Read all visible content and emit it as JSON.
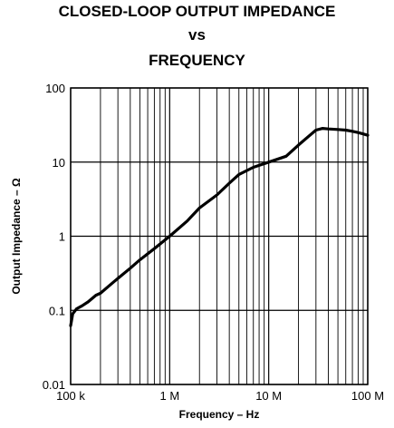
{
  "chart_data": {
    "type": "line",
    "title": [
      "CLOSED-LOOP OUTPUT IMPEDANCE",
      "vs",
      "FREQUENCY"
    ],
    "xlabel": "Frequency – Hz",
    "ylabel": "Output Impedance – Ω",
    "x_scale": "log",
    "y_scale": "log",
    "xlim": [
      100000,
      100000000
    ],
    "ylim": [
      0.01,
      100
    ],
    "x_ticks": [
      {
        "value": 100000,
        "label": "100 k"
      },
      {
        "value": 1000000,
        "label": "1 M"
      },
      {
        "value": 10000000,
        "label": "10 M"
      },
      {
        "value": 100000000,
        "label": "100 M"
      }
    ],
    "y_ticks": [
      {
        "value": 0.01,
        "label": "0.01"
      },
      {
        "value": 0.1,
        "label": "0.1"
      },
      {
        "value": 1,
        "label": "1"
      },
      {
        "value": 10,
        "label": "10"
      },
      {
        "value": 100,
        "label": "100"
      }
    ],
    "grid": true,
    "series": [
      {
        "x": [
          100000,
          105000,
          115000,
          130000,
          150000,
          180000,
          200000,
          250000,
          300000,
          400000,
          500000,
          700000,
          1000000,
          1500000,
          2000000,
          3000000,
          4000000,
          5000000,
          7000000,
          10000000,
          15000000,
          20000000,
          25000000,
          30000000,
          35000000,
          40000000,
          50000000,
          60000000,
          70000000,
          80000000,
          90000000,
          100000000
        ],
        "y": [
          0.062,
          0.09,
          0.105,
          0.115,
          0.13,
          0.16,
          0.17,
          0.22,
          0.27,
          0.37,
          0.48,
          0.68,
          1.0,
          1.6,
          2.4,
          3.6,
          5.2,
          6.8,
          8.5,
          10.0,
          12.0,
          17.0,
          22.0,
          27.0,
          28.5,
          28.0,
          27.5,
          27.0,
          26.0,
          25.0,
          24.0,
          23.0
        ]
      }
    ]
  }
}
